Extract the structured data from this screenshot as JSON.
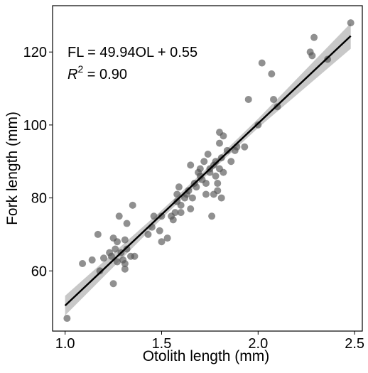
{
  "chart_data": {
    "type": "scatter",
    "xlabel": "Otolith length (mm)",
    "ylabel": "Fork length (mm)",
    "annotation": "FL = 49.94OL + 0.55",
    "r2_label": {
      "symbol": "R",
      "exponent": "2",
      "text": " = 0.90"
    },
    "xlim": [
      0.935,
      2.54
    ],
    "ylim": [
      43.5,
      132.7
    ],
    "xticks": [
      {
        "value": 1.0,
        "label": "1.0"
      },
      1.5,
      {
        "value": 2.0,
        "label": "2.0"
      },
      2.5
    ],
    "yticks": [
      60,
      80,
      100,
      120
    ],
    "grid": false,
    "series": [
      {
        "color": "#555555",
        "x": [
          1.01,
          1.09,
          1.14,
          1.17,
          1.18,
          1.2,
          1.23,
          1.24,
          1.25,
          1.25,
          1.26,
          1.27,
          1.27,
          1.28,
          1.29,
          1.3,
          1.31,
          1.31,
          1.31,
          1.32,
          1.32,
          1.34,
          1.35,
          1.36,
          1.43,
          1.45,
          1.46,
          1.49,
          1.5,
          1.5,
          1.53,
          1.55,
          1.56,
          1.57,
          1.58,
          1.58,
          1.59,
          1.6,
          1.6,
          1.62,
          1.63,
          1.64,
          1.65,
          1.65,
          1.66,
          1.67,
          1.68,
          1.69,
          1.7,
          1.7,
          1.71,
          1.72,
          1.73,
          1.73,
          1.74,
          1.75,
          1.75,
          1.76,
          1.77,
          1.77,
          1.78,
          1.78,
          1.79,
          1.79,
          1.8,
          1.8,
          1.8,
          1.81,
          1.81,
          1.82,
          1.82,
          1.84,
          1.86,
          1.88,
          1.89,
          1.93,
          1.95,
          2.0,
          2.02,
          2.07,
          2.08,
          2.1,
          2.27,
          2.28,
          2.29,
          2.36,
          2.48
        ],
        "values": [
          47,
          62,
          63,
          70,
          60,
          63.5,
          65,
          64,
          69,
          56.5,
          66,
          68,
          62.5,
          75,
          65,
          63,
          60.5,
          62,
          68.5,
          66,
          73,
          64,
          78,
          64,
          70,
          72,
          75,
          71,
          68,
          75,
          69,
          75,
          74,
          76,
          81,
          79,
          83,
          78,
          76,
          80,
          81,
          82,
          77,
          89,
          80,
          84,
          83,
          87,
          86,
          88,
          85,
          90,
          81,
          84,
          92,
          87,
          88,
          75,
          81,
          89,
          86,
          90,
          82,
          84,
          98,
          95,
          88,
          91,
          80,
          87,
          97,
          93,
          90,
          93,
          94,
          94,
          107,
          100,
          117,
          114,
          107,
          105,
          120,
          119,
          124,
          118,
          128
        ]
      }
    ],
    "fit": {
      "color": "#000000",
      "x": [
        1.0,
        2.48
      ],
      "y": [
        50.49,
        124.4
      ]
    },
    "band": {
      "color": "#b0b0b0",
      "x": [
        1.0,
        1.5,
        1.75,
        2.0,
        2.48
      ],
      "lower": [
        47.8,
        74.3,
        87.0,
        99.2,
        120.9
      ],
      "upper": [
        53.2,
        76.6,
        88.9,
        101.7,
        127.9
      ]
    }
  }
}
